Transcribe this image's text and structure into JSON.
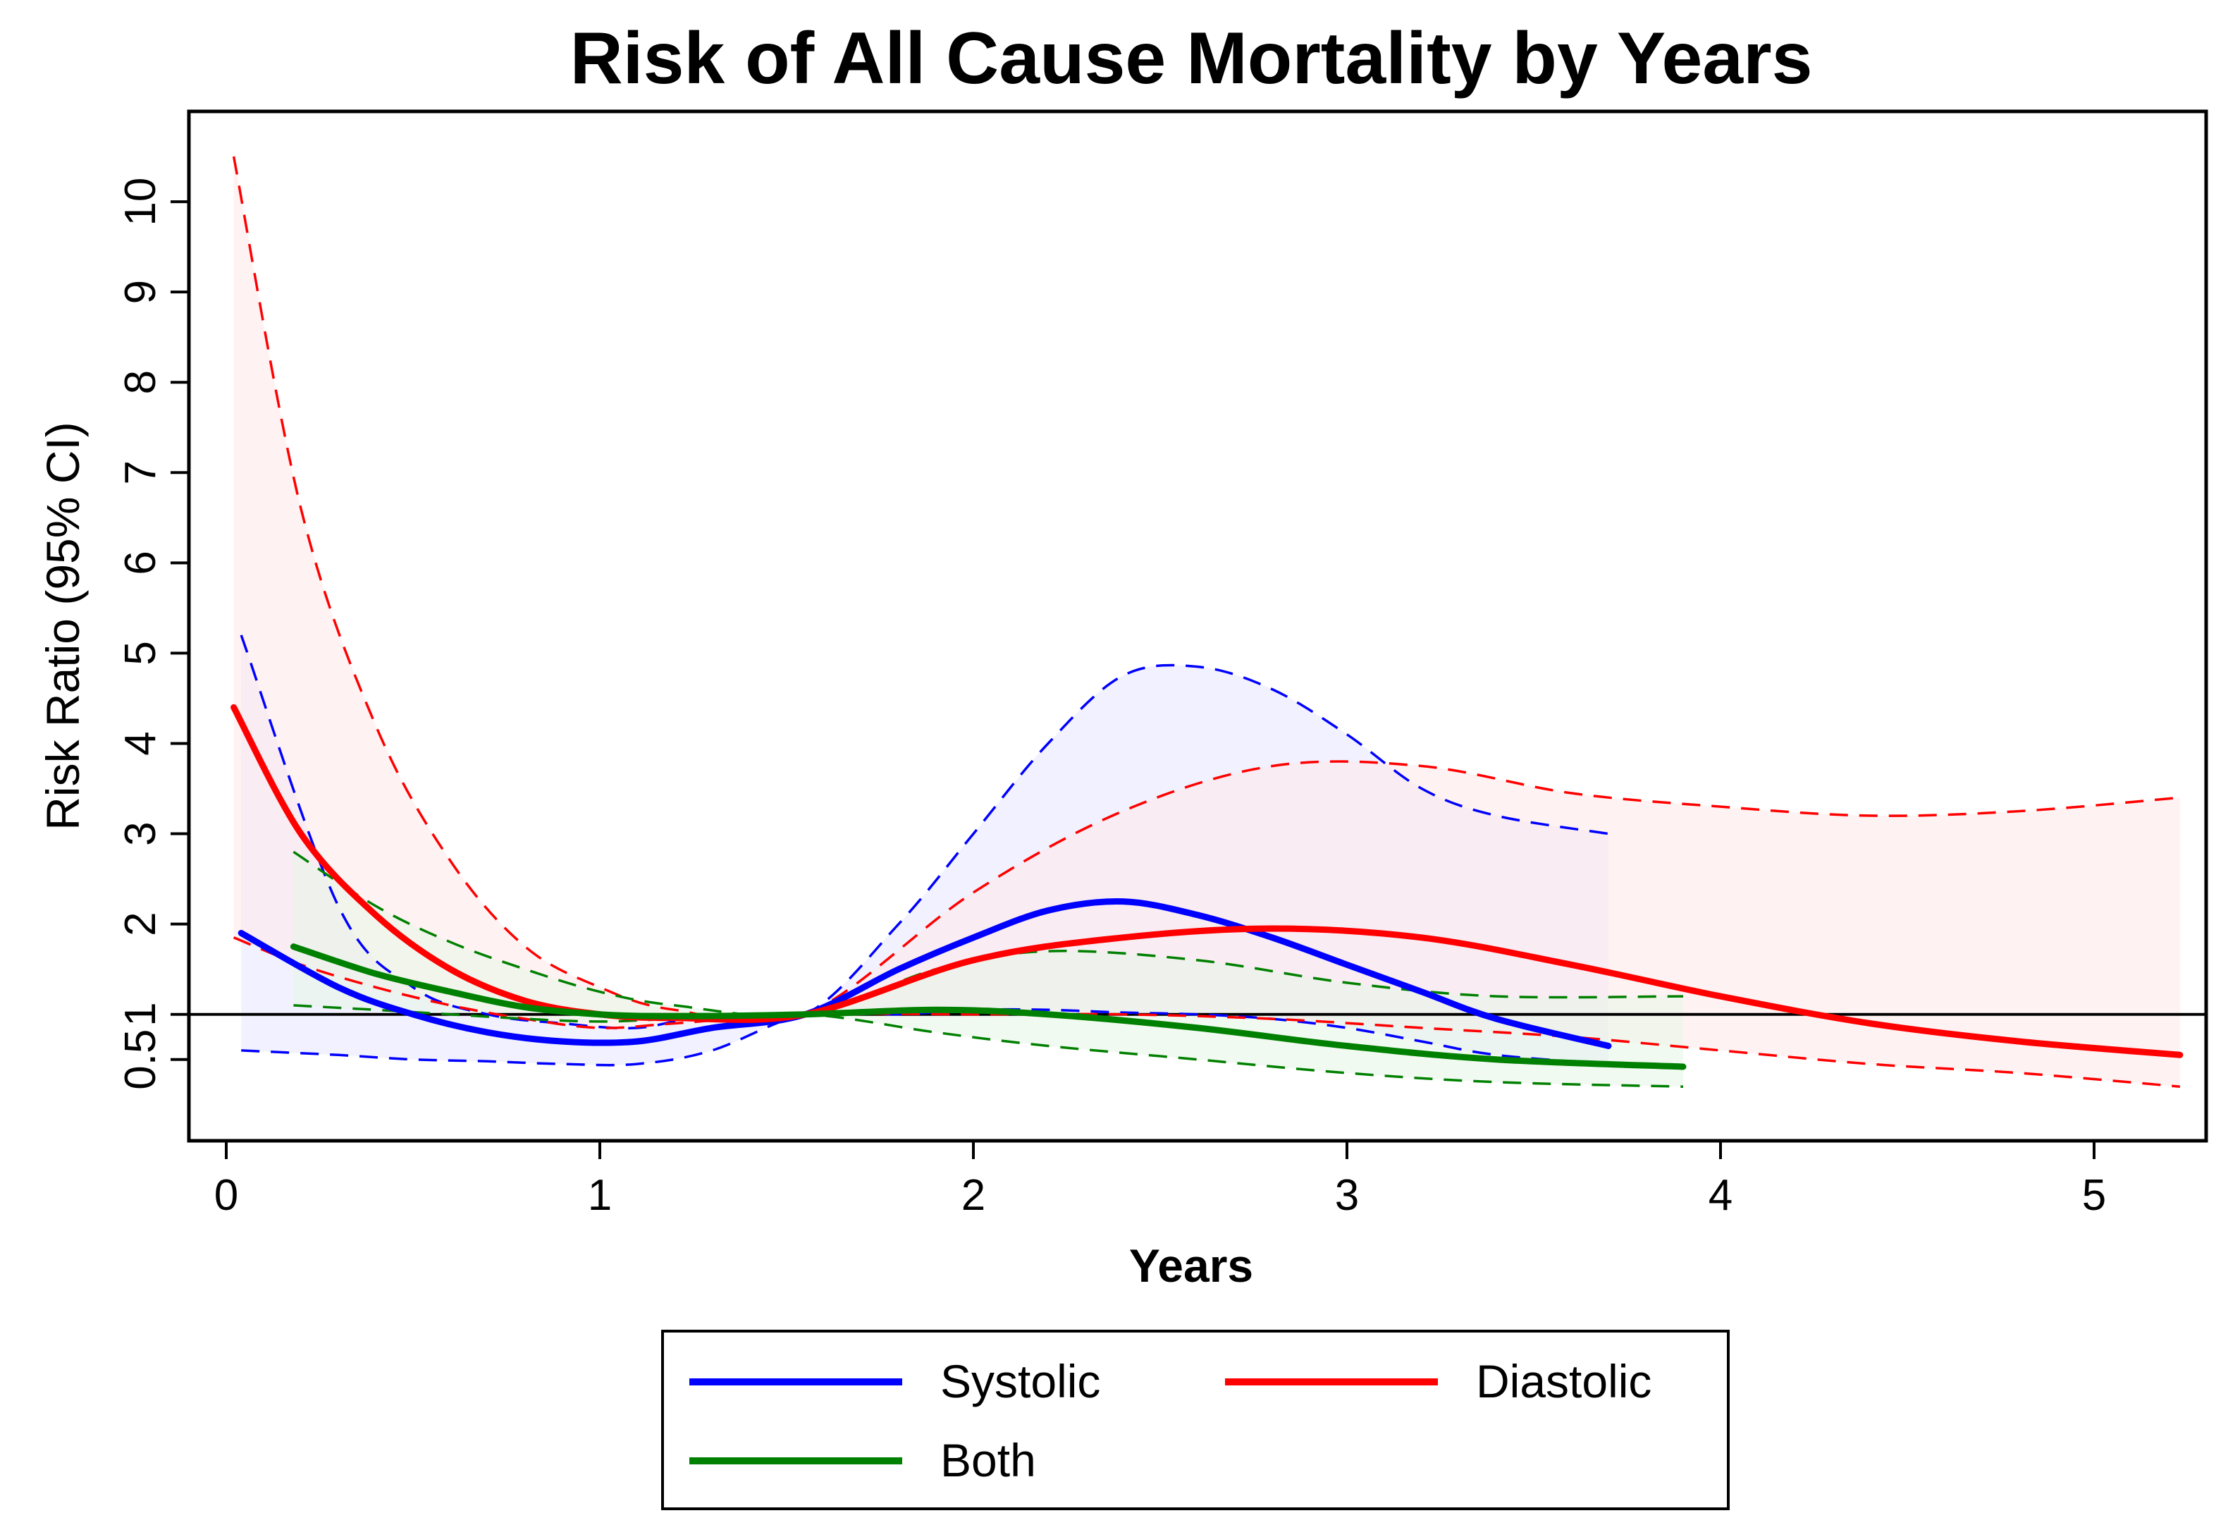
{
  "chart_data": {
    "type": "line",
    "title": "Risk of All Cause Mortality by Years",
    "xlabel": "Years",
    "ylabel": "Risk Ratio (95% CI)",
    "xlim": [
      -0.1,
      5.3
    ],
    "ylim": [
      -0.4,
      11.0
    ],
    "x_ticks": [
      {
        "value": 0,
        "label": "0"
      },
      {
        "value": 1,
        "label": "1"
      },
      {
        "value": 2,
        "label": "2"
      },
      {
        "value": 3,
        "label": "3"
      },
      {
        "value": 4,
        "label": "4"
      },
      {
        "value": 5,
        "label": "5"
      }
    ],
    "y_ticks": [
      {
        "value": 0.5,
        "label": "0.5"
      },
      {
        "value": 1,
        "label": "1"
      },
      {
        "value": 2,
        "label": "2"
      },
      {
        "value": 3,
        "label": "3"
      },
      {
        "value": 4,
        "label": "4"
      },
      {
        "value": 5,
        "label": "5"
      },
      {
        "value": 6,
        "label": "6"
      },
      {
        "value": 7,
        "label": "7"
      },
      {
        "value": 8,
        "label": "8"
      },
      {
        "value": 9,
        "label": "9"
      },
      {
        "value": 10,
        "label": "10"
      }
    ],
    "reference_line": 1,
    "grid": false,
    "legend_position": "bottom",
    "series": [
      {
        "name": "Systolic",
        "color": "#0000ff",
        "fill": "#e8e8ff",
        "x": [
          0.04,
          0.3,
          0.5,
          0.7,
          0.9,
          1.1,
          1.3,
          1.55,
          1.8,
          2.0,
          2.2,
          2.4,
          2.6,
          2.8,
          3.0,
          3.2,
          3.4,
          3.7
        ],
        "y": [
          1.9,
          1.3,
          1.0,
          0.8,
          0.7,
          0.7,
          0.85,
          1.0,
          1.5,
          1.85,
          2.15,
          2.25,
          2.1,
          1.85,
          1.55,
          1.25,
          0.95,
          0.65
        ],
        "lower": [
          0.6,
          0.55,
          0.5,
          0.48,
          0.45,
          0.45,
          0.6,
          1.0,
          1.0,
          1.05,
          1.05,
          1.02,
          1.0,
          0.95,
          0.85,
          0.7,
          0.55,
          0.45
        ],
        "upper": [
          5.2,
          2.2,
          1.3,
          1.0,
          0.9,
          0.85,
          1.0,
          1.0,
          2.0,
          3.0,
          4.0,
          4.75,
          4.85,
          4.6,
          4.1,
          3.5,
          3.2,
          3.0
        ]
      },
      {
        "name": "Diastolic",
        "color": "#ff0000",
        "fill": "#ffeaea",
        "x": [
          0.02,
          0.2,
          0.4,
          0.6,
          0.8,
          1.0,
          1.2,
          1.55,
          2.0,
          2.4,
          2.8,
          3.2,
          3.6,
          4.0,
          4.4,
          4.8,
          5.23
        ],
        "y": [
          4.4,
          3.0,
          2.1,
          1.5,
          1.15,
          1.0,
          0.96,
          1.0,
          1.6,
          1.85,
          1.95,
          1.85,
          1.55,
          1.2,
          0.9,
          0.7,
          0.55
        ],
        "lower": [
          1.85,
          1.55,
          1.3,
          1.1,
          0.95,
          0.85,
          0.9,
          1.0,
          1.0,
          1.0,
          0.95,
          0.85,
          0.75,
          0.6,
          0.45,
          0.35,
          0.2
        ],
        "upper": [
          10.5,
          6.6,
          4.2,
          2.7,
          1.75,
          1.3,
          1.05,
          1.0,
          2.35,
          3.25,
          3.75,
          3.75,
          3.45,
          3.3,
          3.2,
          3.25,
          3.4
        ]
      },
      {
        "name": "Both",
        "color": "#008000",
        "fill": "#e8f6e8",
        "x": [
          0.18,
          0.4,
          0.6,
          0.8,
          1.0,
          1.2,
          1.55,
          1.9,
          2.2,
          2.6,
          3.0,
          3.4,
          3.9
        ],
        "y": [
          1.75,
          1.45,
          1.25,
          1.08,
          1.0,
          0.98,
          1.0,
          1.05,
          1.0,
          0.85,
          0.65,
          0.5,
          0.42
        ],
        "lower": [
          1.1,
          1.05,
          1.0,
          0.95,
          0.92,
          0.95,
          1.0,
          0.8,
          0.65,
          0.5,
          0.35,
          0.25,
          0.2
        ],
        "upper": [
          2.8,
          2.2,
          1.8,
          1.5,
          1.25,
          1.1,
          1.0,
          1.5,
          1.7,
          1.6,
          1.35,
          1.2,
          1.2
        ]
      }
    ]
  }
}
